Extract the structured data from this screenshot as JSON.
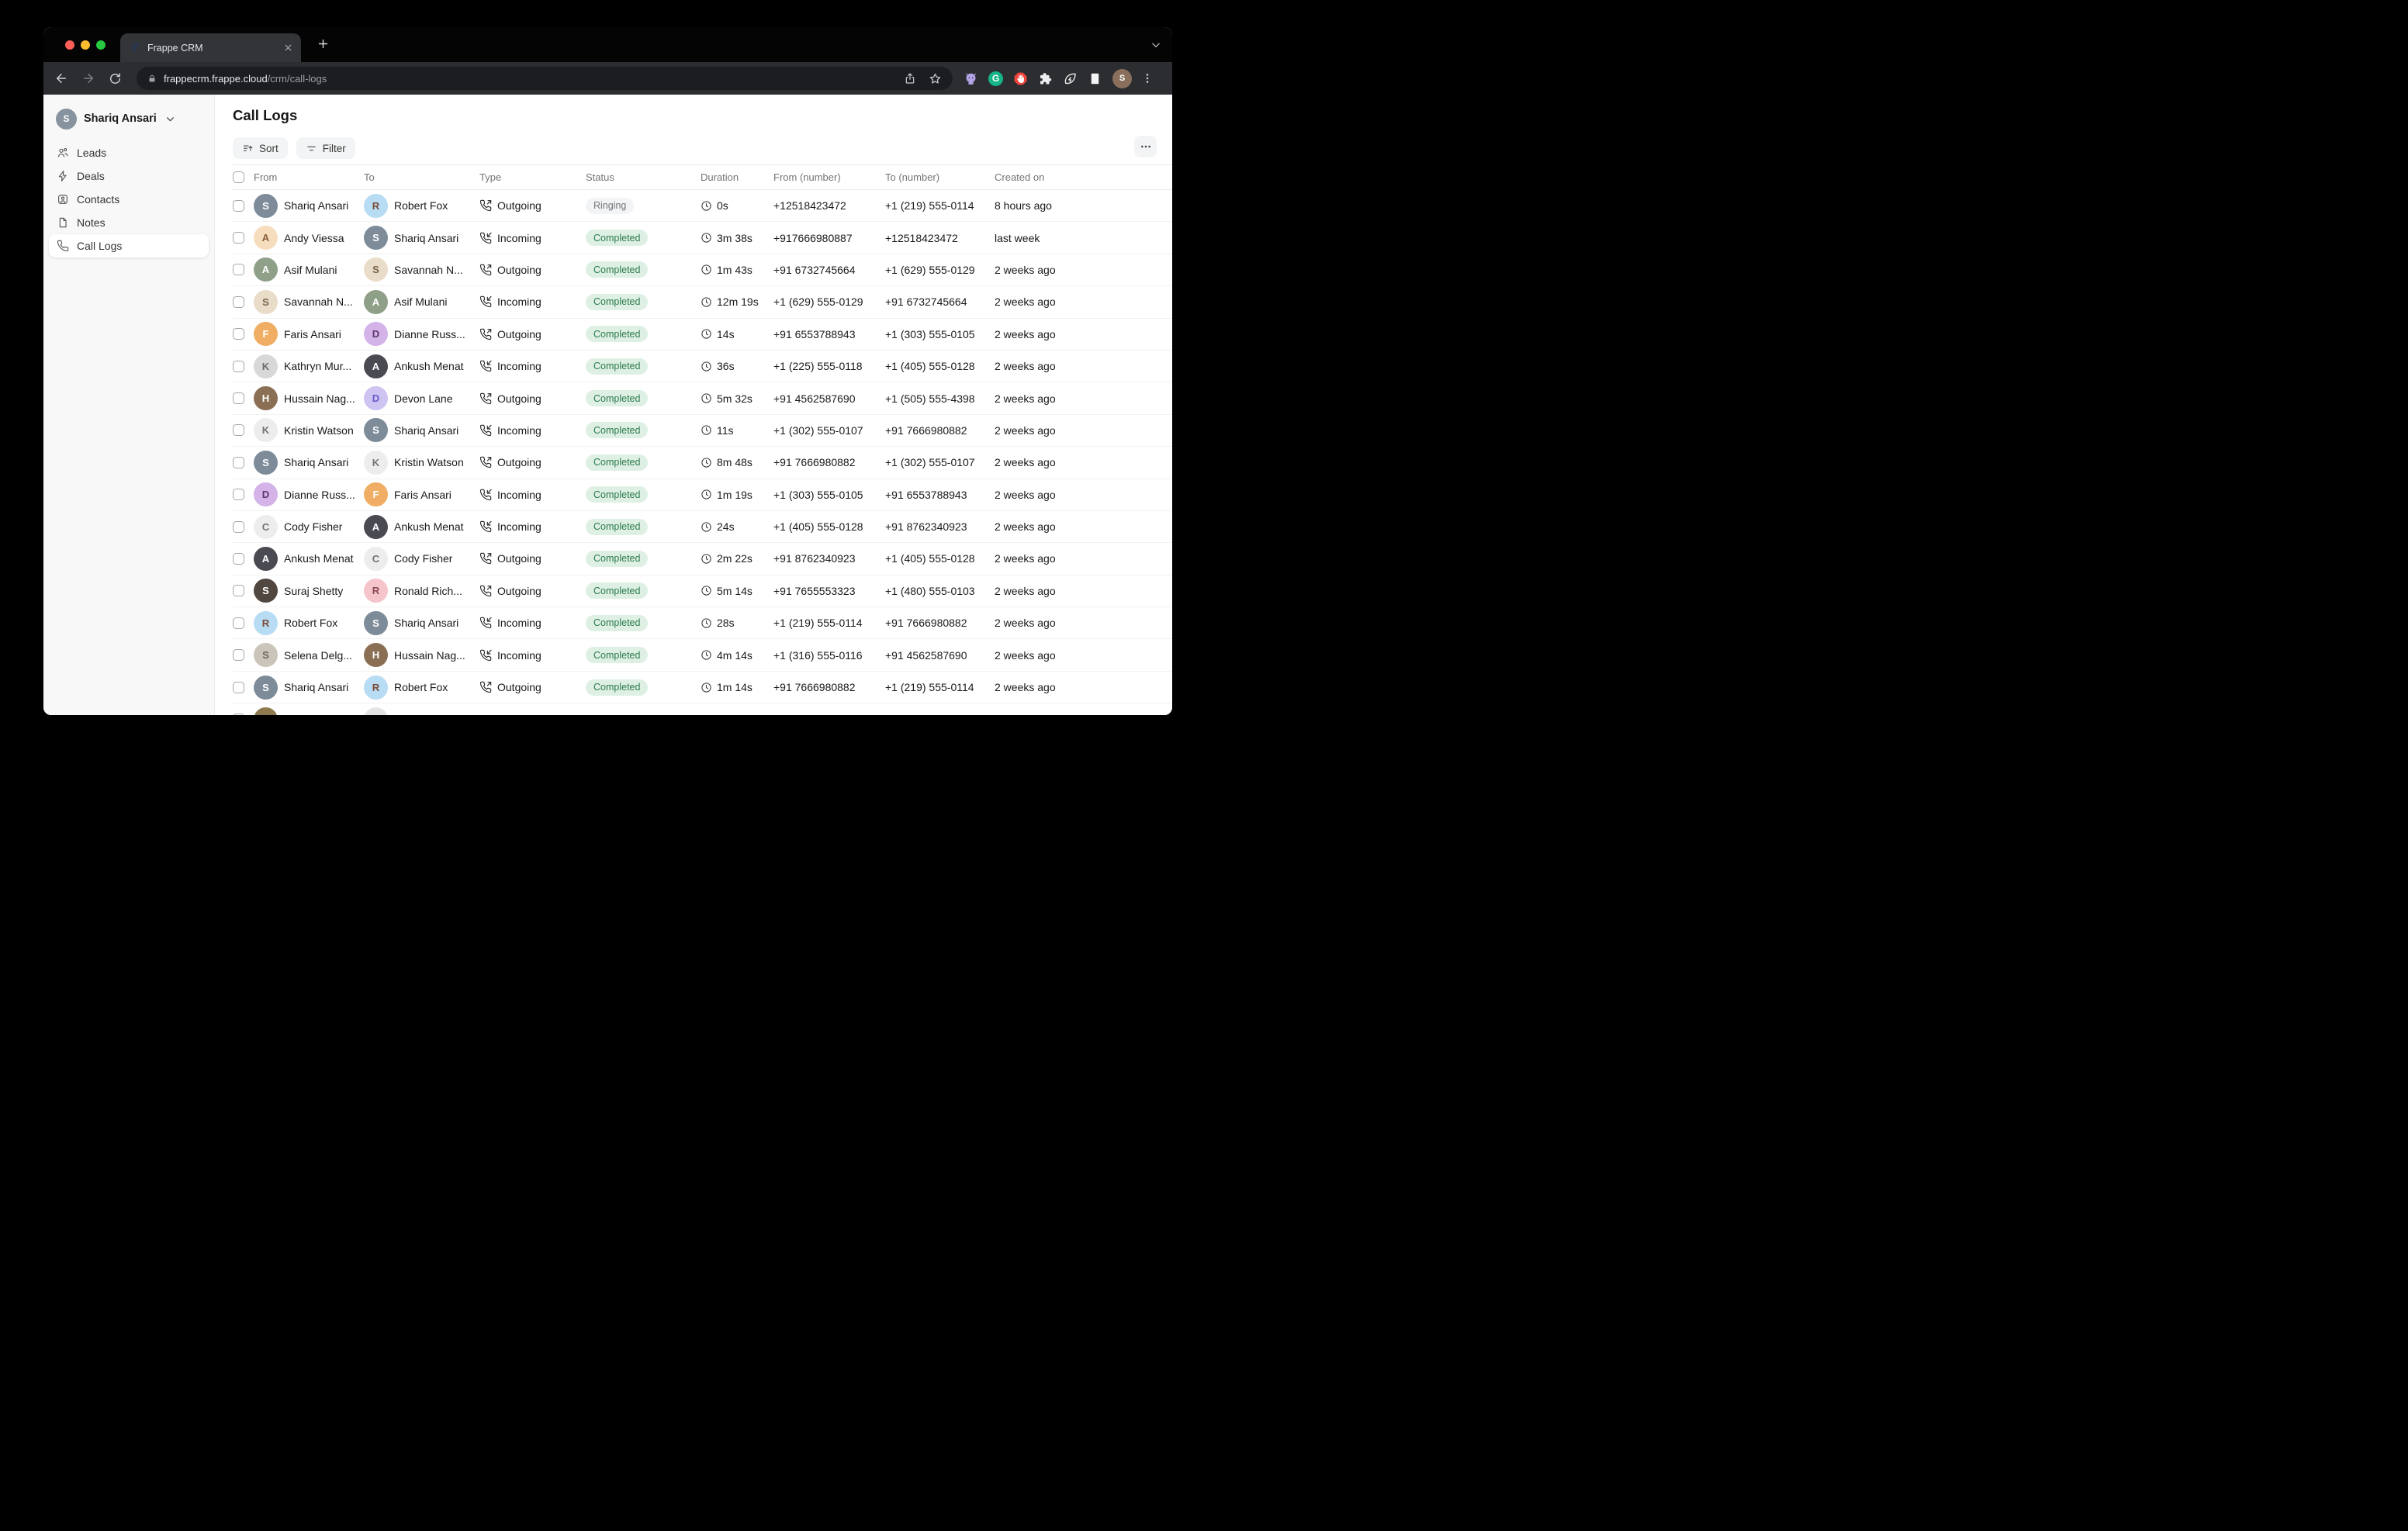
{
  "browser": {
    "traffic_lights": {
      "close": "#ff5f57",
      "minimize": "#febc2e",
      "zoom": "#28c840"
    },
    "tab": {
      "title": "Frappe CRM",
      "favicon_color": "#1f2b45"
    },
    "url": {
      "host": "frappecrm.frappe.cloud",
      "path": "/crm/call-logs"
    },
    "extensions": [
      {
        "icon": "github-extension-icon",
        "color": "#b2a4e6"
      },
      {
        "icon": "grammarly-extension-icon",
        "color": "#15b488",
        "glyph": "G"
      },
      {
        "icon": "adblock-extension-icon",
        "color": "#f0453d"
      },
      {
        "icon": "extensions-puzzle-icon",
        "color": "#eceef0"
      },
      {
        "icon": "leaf-extension-icon",
        "color": "#eceef0"
      },
      {
        "icon": "square-extension-icon",
        "color": "#f5f5f5"
      }
    ],
    "profile_initial": "S"
  },
  "sidebar": {
    "user": {
      "name": "Shariq Ansari",
      "initial": "S",
      "bg": "#87949f",
      "fg": "#ffffff"
    },
    "items": [
      {
        "label": "Leads",
        "icon": "users-icon",
        "active": false
      },
      {
        "label": "Deals",
        "icon": "zap-icon",
        "active": false
      },
      {
        "label": "Contacts",
        "icon": "contact-card-icon",
        "active": false
      },
      {
        "label": "Notes",
        "icon": "note-icon",
        "active": false
      },
      {
        "label": "Call Logs",
        "icon": "phone-icon",
        "active": true
      }
    ]
  },
  "main": {
    "title": "Call Logs",
    "toolbar": {
      "sort_label": "Sort",
      "filter_label": "Filter"
    }
  },
  "table": {
    "headers": [
      "From",
      "To",
      "Type",
      "Status",
      "Duration",
      "From (number)",
      "To (number)",
      "Created on"
    ],
    "status_colors": {
      "Completed": {
        "bg": "#def0e4",
        "fg": "#2b7a4b"
      },
      "Ringing": {
        "bg": "#f3f4f6",
        "fg": "#74747c"
      }
    },
    "people": {
      "shariq": {
        "name": "Shariq Ansari",
        "initial": "S",
        "bg": "#7e8b99",
        "fg": "#ffffff"
      },
      "robert": {
        "name": "Robert Fox",
        "initial": "R",
        "bg": "#b7dcf4",
        "fg": "#7b4a33"
      },
      "andy": {
        "name": "Andy Viessa",
        "initial": "A",
        "bg": "#f6ddbd",
        "fg": "#8a5a3a"
      },
      "asif": {
        "name": "Asif Mulani",
        "initial": "A",
        "bg": "#8fa089",
        "fg": "#ffffff"
      },
      "savannah": {
        "name": "Savannah N...",
        "initial": "S",
        "bg": "#e9dcc8",
        "fg": "#7a6348"
      },
      "faris": {
        "name": "Faris Ansari",
        "initial": "F",
        "bg": "#efae63",
        "fg": "#ffffff"
      },
      "kathryn": {
        "name": "Kathryn Mur...",
        "initial": "K",
        "bg": "#d8d8d8",
        "fg": "#6b6b6b"
      },
      "ankush": {
        "name": "Ankush Menat",
        "initial": "A",
        "bg": "#4a4a52",
        "fg": "#ffffff"
      },
      "hussain": {
        "name": "Hussain Nag...",
        "initial": "H",
        "bg": "#8a6f54",
        "fg": "#ffffff"
      },
      "devon": {
        "name": "Devon Lane",
        "initial": "D",
        "bg": "#cfc3f2",
        "fg": "#6a58c8"
      },
      "kristin": {
        "name": "Kristin Watson",
        "initial": "K",
        "bg": "#ededed",
        "fg": "#737373"
      },
      "dianne": {
        "name": "Dianne Russ...",
        "initial": "D",
        "bg": "#d4b3e8",
        "fg": "#5a3a6b"
      },
      "cody": {
        "name": "Cody Fisher",
        "initial": "C",
        "bg": "#ededed",
        "fg": "#737373"
      },
      "suraj": {
        "name": "Suraj Shetty",
        "initial": "S",
        "bg": "#514741",
        "fg": "#ffffff"
      },
      "ronald": {
        "name": "Ronald Rich...",
        "initial": "R",
        "bg": "#f6c4cb",
        "fg": "#8a4a55"
      },
      "selena": {
        "name": "Selena Delg...",
        "initial": "S",
        "bg": "#cac4ba",
        "fg": "#6b655c"
      },
      "p17a": {
        "name": "",
        "initial": "",
        "bg": "#8d7b4f",
        "fg": "#8d7b4f"
      },
      "p17b": {
        "name": "",
        "initial": "",
        "bg": "#e4e4e4",
        "fg": "#e4e4e4"
      }
    },
    "rows": [
      {
        "from": "shariq",
        "to": "robert",
        "type": "Outgoing",
        "status": "Ringing",
        "duration": "0s",
        "from_number": "+12518423472",
        "to_number": "+1 (219) 555-0114",
        "created": "8 hours ago"
      },
      {
        "from": "andy",
        "to": "shariq",
        "type": "Incoming",
        "status": "Completed",
        "duration": "3m 38s",
        "from_number": "+917666980887",
        "to_number": "+12518423472",
        "created": "last week"
      },
      {
        "from": "asif",
        "to": "savannah",
        "type": "Outgoing",
        "status": "Completed",
        "duration": "1m 43s",
        "from_number": "+91 6732745664",
        "to_number": "+1 (629) 555-0129",
        "created": "2 weeks ago"
      },
      {
        "from": "savannah",
        "to": "asif",
        "type": "Incoming",
        "status": "Completed",
        "duration": "12m 19s",
        "from_number": "+1 (629) 555-0129",
        "to_number": "+91 6732745664",
        "created": "2 weeks ago"
      },
      {
        "from": "faris",
        "to": "dianne",
        "type": "Outgoing",
        "status": "Completed",
        "duration": "14s",
        "from_number": "+91 6553788943",
        "to_number": "+1 (303) 555-0105",
        "created": "2 weeks ago"
      },
      {
        "from": "kathryn",
        "to": "ankush",
        "type": "Incoming",
        "status": "Completed",
        "duration": "36s",
        "from_number": "+1 (225) 555-0118",
        "to_number": "+1 (405) 555-0128",
        "created": "2 weeks ago"
      },
      {
        "from": "hussain",
        "to": "devon",
        "type": "Outgoing",
        "status": "Completed",
        "duration": "5m 32s",
        "from_number": "+91 4562587690",
        "to_number": "+1 (505) 555-4398",
        "created": "2 weeks ago"
      },
      {
        "from": "kristin",
        "to": "shariq",
        "type": "Incoming",
        "status": "Completed",
        "duration": "11s",
        "from_number": "+1 (302) 555-0107",
        "to_number": "+91 7666980882",
        "created": "2 weeks ago"
      },
      {
        "from": "shariq",
        "to": "kristin",
        "type": "Outgoing",
        "status": "Completed",
        "duration": "8m 48s",
        "from_number": "+91 7666980882",
        "to_number": "+1 (302) 555-0107",
        "created": "2 weeks ago"
      },
      {
        "from": "dianne",
        "to": "faris",
        "type": "Incoming",
        "status": "Completed",
        "duration": "1m 19s",
        "from_number": "+1 (303) 555-0105",
        "to_number": "+91 6553788943",
        "created": "2 weeks ago"
      },
      {
        "from": "cody",
        "to": "ankush",
        "type": "Incoming",
        "status": "Completed",
        "duration": "24s",
        "from_number": "+1 (405) 555-0128",
        "to_number": "+91 8762340923",
        "created": "2 weeks ago"
      },
      {
        "from": "ankush",
        "to": "cody",
        "type": "Outgoing",
        "status": "Completed",
        "duration": "2m 22s",
        "from_number": "+91 8762340923",
        "to_number": "+1 (405) 555-0128",
        "created": "2 weeks ago"
      },
      {
        "from": "suraj",
        "to": "ronald",
        "type": "Outgoing",
        "status": "Completed",
        "duration": "5m 14s",
        "from_number": "+91 7655553323",
        "to_number": "+1 (480) 555-0103",
        "created": "2 weeks ago"
      },
      {
        "from": "robert",
        "to": "shariq",
        "type": "Incoming",
        "status": "Completed",
        "duration": "28s",
        "from_number": "+1 (219) 555-0114",
        "to_number": "+91 7666980882",
        "created": "2 weeks ago"
      },
      {
        "from": "selena",
        "to": "hussain",
        "type": "Incoming",
        "status": "Completed",
        "duration": "4m 14s",
        "from_number": "+1 (316) 555-0116",
        "to_number": "+91 4562587690",
        "created": "2 weeks ago"
      },
      {
        "from": "shariq",
        "to": "robert",
        "type": "Outgoing",
        "status": "Completed",
        "duration": "1m 14s",
        "from_number": "+91 7666980882",
        "to_number": "+1 (219) 555-0114",
        "created": "2 weeks ago"
      },
      {
        "from": "p17a",
        "to": "p17b",
        "type": "",
        "status": "",
        "duration": "",
        "from_number": "",
        "to_number": "",
        "created": ""
      }
    ]
  }
}
